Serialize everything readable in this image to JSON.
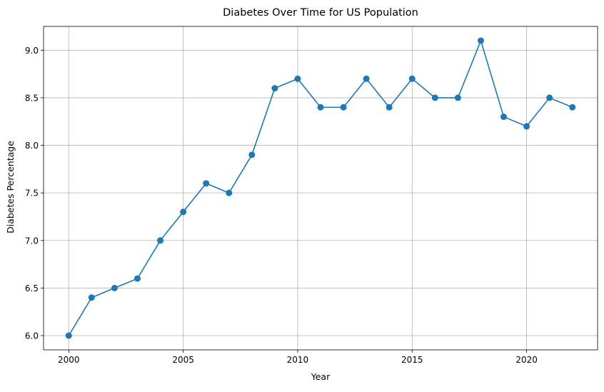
{
  "chart_data": {
    "type": "line",
    "title": "Diabetes Over Time for US Population",
    "xlabel": "Year",
    "ylabel": "Diabetes Percentage",
    "xlim": [
      1998.9,
      2023.1
    ],
    "ylim": [
      5.85,
      9.25
    ],
    "x_ticks": [
      2000,
      2005,
      2010,
      2015,
      2020
    ],
    "y_ticks": [
      6.0,
      6.5,
      7.0,
      7.5,
      8.0,
      8.5,
      9.0
    ],
    "x_tick_labels": [
      "2000",
      "2005",
      "2010",
      "2015",
      "2020"
    ],
    "y_tick_labels": [
      "6.0",
      "6.5",
      "7.0",
      "7.5",
      "8.0",
      "8.5",
      "9.0"
    ],
    "grid": true,
    "line_color": "#1f77b4",
    "marker": "circle",
    "series": [
      {
        "x": [
          2000,
          2001,
          2002,
          2003,
          2004,
          2005,
          2006,
          2007,
          2008,
          2009,
          2010,
          2011,
          2012,
          2013,
          2014,
          2015,
          2016,
          2017,
          2018,
          2019,
          2020,
          2021,
          2022
        ],
        "y": [
          6.0,
          6.4,
          6.5,
          6.6,
          7.0,
          7.3,
          7.6,
          7.5,
          7.9,
          8.6,
          8.7,
          8.4,
          8.4,
          8.7,
          8.4,
          8.7,
          8.5,
          8.5,
          9.1,
          8.3,
          8.2,
          8.5,
          8.4
        ]
      }
    ]
  }
}
